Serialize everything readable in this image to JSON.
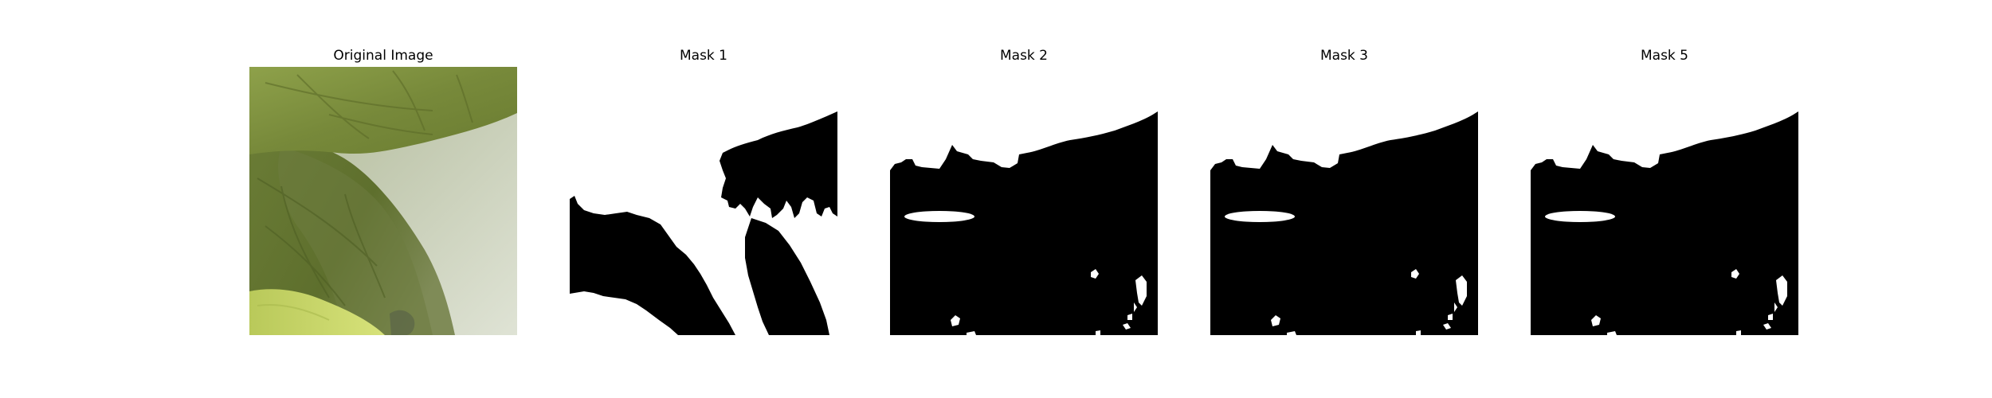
{
  "figure": {
    "panels": [
      {
        "title": "Original Image",
        "kind": "photo"
      },
      {
        "title": "Mask 1",
        "kind": "mask"
      },
      {
        "title": "Mask 2",
        "kind": "mask"
      },
      {
        "title": "Mask 3",
        "kind": "mask"
      },
      {
        "title": "Mask 5",
        "kind": "mask"
      }
    ]
  },
  "colors": {
    "mask_foreground": "#ffffff",
    "mask_background": "#000000",
    "leaf_dark": "#5d6e2b",
    "leaf_light": "#c5d45e",
    "surface_light": "#d6dccb"
  }
}
